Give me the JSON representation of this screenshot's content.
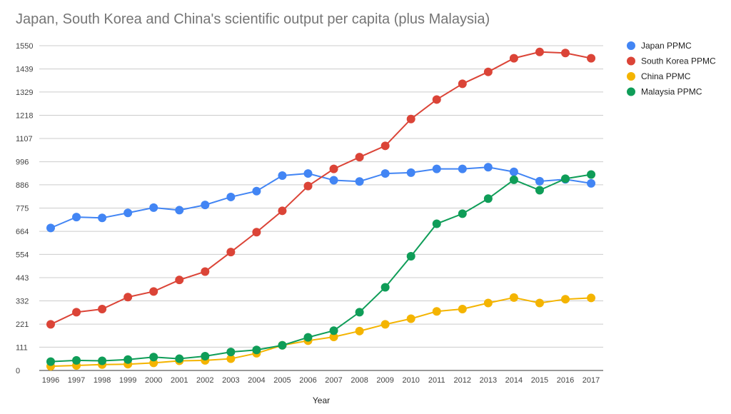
{
  "chart_data": {
    "type": "line",
    "title": "Japan, South Korea and China's scientific output per capita (plus Malaysia)",
    "xlabel": "Year",
    "ylabel": "",
    "ylim": [
      0,
      1550
    ],
    "yticks": [
      0,
      111,
      221,
      332,
      443,
      554,
      664,
      775,
      886,
      996,
      1107,
      1218,
      1329,
      1439,
      1550
    ],
    "x": [
      "1996",
      "1997",
      "1998",
      "1999",
      "2000",
      "2001",
      "2002",
      "2003",
      "2004",
      "2005",
      "2006",
      "2007",
      "2008",
      "2009",
      "2010",
      "2011",
      "2012",
      "2013",
      "2014",
      "2015",
      "2016",
      "2017"
    ],
    "grid": true,
    "legend_position": "right",
    "series": [
      {
        "name": "Japan PPMC",
        "color": "#4285F4",
        "values": [
          680,
          732,
          728,
          752,
          777,
          765,
          790,
          828,
          856,
          930,
          940,
          908,
          902,
          940,
          944,
          962,
          962,
          970,
          948,
          903,
          912,
          893
        ]
      },
      {
        "name": "South Korea PPMC",
        "color": "#DB4437",
        "values": [
          220,
          278,
          293,
          350,
          377,
          432,
          472,
          565,
          660,
          762,
          880,
          962,
          1018,
          1072,
          1200,
          1293,
          1368,
          1425,
          1490,
          1520,
          1515,
          1490
        ]
      },
      {
        "name": "China PPMC",
        "color": "#F4B400",
        "values": [
          20,
          24,
          28,
          30,
          36,
          46,
          48,
          56,
          82,
          120,
          142,
          160,
          188,
          220,
          247,
          282,
          293,
          322,
          348,
          322,
          340,
          346
        ]
      },
      {
        "name": "Malaysia PPMC",
        "color": "#0F9D58",
        "values": [
          42,
          48,
          46,
          52,
          64,
          56,
          68,
          88,
          98,
          120,
          158,
          190,
          278,
          397,
          545,
          700,
          748,
          820,
          910,
          860,
          915,
          935
        ]
      }
    ]
  }
}
